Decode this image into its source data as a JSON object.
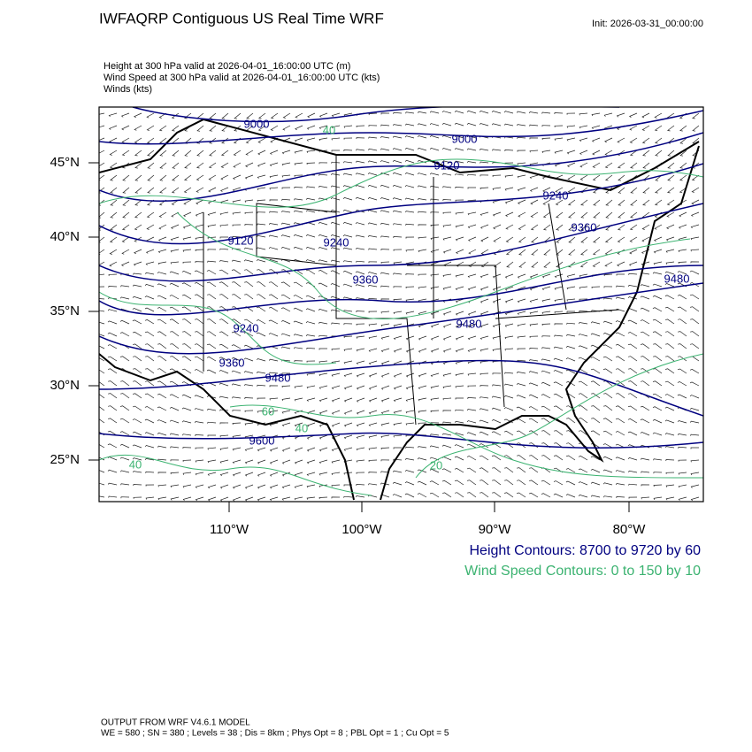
{
  "header": {
    "title": "IWFAQRP Contiguous US Real Time WRF",
    "init": "Init: 2026-03-31_00:00:00",
    "lines": [
      "Height at 300 hPa valid at 2026-04-01_16:00:00 UTC   (m)",
      "Wind Speed at 300 hPa valid at 2026-04-01_16:00:00 UTC   (kts)",
      "Winds   (kts)"
    ]
  },
  "map": {
    "lat_labels": [
      "45°N",
      "40°N",
      "35°N",
      "30°N",
      "25°N"
    ],
    "lon_labels": [
      "110°W",
      "100°W",
      "90°W",
      "80°W"
    ],
    "height_labels": [
      "9000",
      "9000",
      "9120",
      "9120",
      "9240",
      "9240",
      "9360",
      "9360",
      "9480",
      "9480",
      "9240",
      "9360",
      "9480",
      "9600"
    ],
    "speed_labels": [
      "40",
      "60",
      "40",
      "40",
      "20"
    ]
  },
  "legend": {
    "height": "Height Contours: 8700 to 9720 by 60",
    "speed": "Wind Speed Contours: 0 to 150 by 10"
  },
  "footer": [
    "OUTPUT FROM WRF V4.6.1 MODEL",
    "WE = 580 ; SN = 380 ; Levels = 38 ; Dis = 8km ; Phys Opt = 8 ; PBL Opt = 1 ; Cu Opt = 5"
  ]
}
